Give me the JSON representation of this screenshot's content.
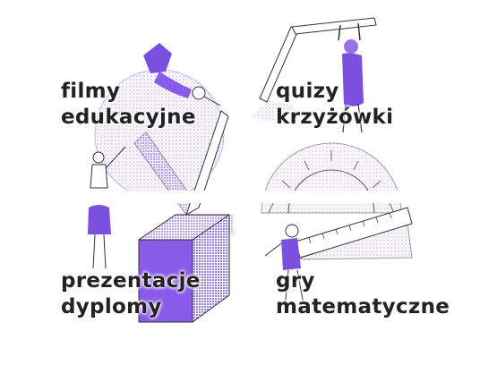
{
  "theme": {
    "accent": "#7B4FE0",
    "accent_light": "#B9A1F0",
    "ink": "#222222"
  },
  "tiles": [
    {
      "id": "filmy",
      "line1": "filmy",
      "line2": "edukacyjne"
    },
    {
      "id": "quizy",
      "line1": "quizy",
      "line2": "krzyżówki"
    },
    {
      "id": "prezentacje",
      "line1": "prezentacje",
      "line2": "dyplomy"
    },
    {
      "id": "gry",
      "line1": "gry",
      "line2": "matematyczne"
    }
  ]
}
